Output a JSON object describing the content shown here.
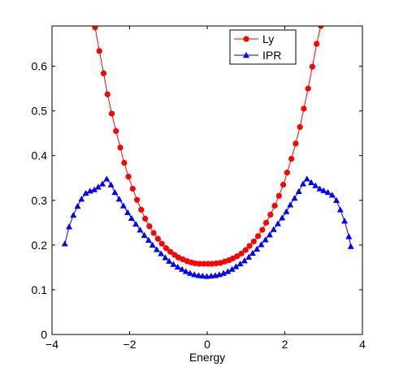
{
  "chart_data": {
    "type": "line",
    "title": "",
    "xlabel": "Energy",
    "ylabel": "",
    "xlim": [
      -4,
      4
    ],
    "ylim": [
      0,
      0.69
    ],
    "xticks": [
      -4,
      -2,
      0,
      2,
      4
    ],
    "yticks": [
      0,
      0.1,
      0.2,
      0.3,
      0.4,
      0.5,
      0.6
    ],
    "grid": false,
    "legend_position": "top-right",
    "series": [
      {
        "name": "Ly",
        "color": "#ff0000",
        "marker": "circle",
        "points": [
          [
            -2.89,
            0.687
          ],
          [
            -2.78,
            0.634
          ],
          [
            -2.67,
            0.584
          ],
          [
            -2.57,
            0.537
          ],
          [
            -2.46,
            0.494
          ],
          [
            -2.35,
            0.455
          ],
          [
            -2.24,
            0.418
          ],
          [
            -2.14,
            0.384
          ],
          [
            -2.03,
            0.353
          ],
          [
            -1.92,
            0.326
          ],
          [
            -1.81,
            0.301
          ],
          [
            -1.7,
            0.279
          ],
          [
            -1.6,
            0.259
          ],
          [
            -1.49,
            0.242
          ],
          [
            -1.38,
            0.227
          ],
          [
            -1.27,
            0.214
          ],
          [
            -1.17,
            0.203
          ],
          [
            -1.06,
            0.193
          ],
          [
            -0.95,
            0.185
          ],
          [
            -0.84,
            0.178
          ],
          [
            -0.74,
            0.172
          ],
          [
            -0.63,
            0.168
          ],
          [
            -0.52,
            0.164
          ],
          [
            -0.41,
            0.161
          ],
          [
            -0.31,
            0.159
          ],
          [
            -0.2,
            0.158
          ],
          [
            -0.09,
            0.158
          ],
          [
            0.02,
            0.158
          ],
          [
            0.12,
            0.158
          ],
          [
            0.23,
            0.159
          ],
          [
            0.34,
            0.16
          ],
          [
            0.45,
            0.163
          ],
          [
            0.56,
            0.166
          ],
          [
            0.66,
            0.17
          ],
          [
            0.77,
            0.175
          ],
          [
            0.88,
            0.181
          ],
          [
            0.99,
            0.189
          ],
          [
            1.09,
            0.198
          ],
          [
            1.2,
            0.208
          ],
          [
            1.31,
            0.22
          ],
          [
            1.42,
            0.234
          ],
          [
            1.52,
            0.25
          ],
          [
            1.63,
            0.268
          ],
          [
            1.74,
            0.288
          ],
          [
            1.85,
            0.31
          ],
          [
            1.96,
            0.335
          ],
          [
            2.06,
            0.362
          ],
          [
            2.17,
            0.393
          ],
          [
            2.28,
            0.427
          ],
          [
            2.39,
            0.464
          ],
          [
            2.49,
            0.505
          ],
          [
            2.6,
            0.55
          ],
          [
            2.71,
            0.599
          ],
          [
            2.82,
            0.65
          ],
          [
            2.93,
            0.69
          ]
        ]
      },
      {
        "name": "IPR",
        "color": "#0000ff",
        "marker": "triangle",
        "points": [
          [
            -3.67,
            0.203
          ],
          [
            -3.56,
            0.241
          ],
          [
            -3.45,
            0.267
          ],
          [
            -3.34,
            0.287
          ],
          [
            -3.24,
            0.303
          ],
          [
            -3.13,
            0.316
          ],
          [
            -3.02,
            0.321
          ],
          [
            -2.91,
            0.324
          ],
          [
            -2.81,
            0.33
          ],
          [
            -2.7,
            0.337
          ],
          [
            -2.59,
            0.348
          ],
          [
            -2.48,
            0.335
          ],
          [
            -2.38,
            0.318
          ],
          [
            -2.27,
            0.303
          ],
          [
            -2.16,
            0.288
          ],
          [
            -2.05,
            0.273
          ],
          [
            -1.95,
            0.26
          ],
          [
            -1.84,
            0.247
          ],
          [
            -1.73,
            0.234
          ],
          [
            -1.62,
            0.222
          ],
          [
            -1.51,
            0.211
          ],
          [
            -1.41,
            0.2
          ],
          [
            -1.3,
            0.19
          ],
          [
            -1.19,
            0.181
          ],
          [
            -1.08,
            0.172
          ],
          [
            -0.98,
            0.164
          ],
          [
            -0.87,
            0.157
          ],
          [
            -0.76,
            0.151
          ],
          [
            -0.65,
            0.146
          ],
          [
            -0.55,
            0.141
          ],
          [
            -0.44,
            0.137
          ],
          [
            -0.33,
            0.134
          ],
          [
            -0.22,
            0.132
          ],
          [
            -0.12,
            0.131
          ],
          [
            -0.01,
            0.13
          ],
          [
            0.1,
            0.131
          ],
          [
            0.21,
            0.132
          ],
          [
            0.31,
            0.134
          ],
          [
            0.42,
            0.137
          ],
          [
            0.53,
            0.141
          ],
          [
            0.64,
            0.146
          ],
          [
            0.74,
            0.152
          ],
          [
            0.85,
            0.158
          ],
          [
            0.96,
            0.165
          ],
          [
            1.07,
            0.173
          ],
          [
            1.17,
            0.182
          ],
          [
            1.28,
            0.191
          ],
          [
            1.39,
            0.201
          ],
          [
            1.5,
            0.212
          ],
          [
            1.61,
            0.223
          ],
          [
            1.71,
            0.235
          ],
          [
            1.82,
            0.248
          ],
          [
            1.93,
            0.261
          ],
          [
            2.04,
            0.275
          ],
          [
            2.14,
            0.29
          ],
          [
            2.25,
            0.305
          ],
          [
            2.36,
            0.32
          ],
          [
            2.47,
            0.337
          ],
          [
            2.57,
            0.348
          ],
          [
            2.68,
            0.34
          ],
          [
            2.79,
            0.333
          ],
          [
            2.9,
            0.326
          ],
          [
            3.0,
            0.322
          ],
          [
            3.11,
            0.318
          ],
          [
            3.22,
            0.312
          ],
          [
            3.33,
            0.3
          ],
          [
            3.43,
            0.279
          ],
          [
            3.54,
            0.254
          ],
          [
            3.65,
            0.219
          ],
          [
            3.7,
            0.197
          ]
        ]
      }
    ]
  }
}
